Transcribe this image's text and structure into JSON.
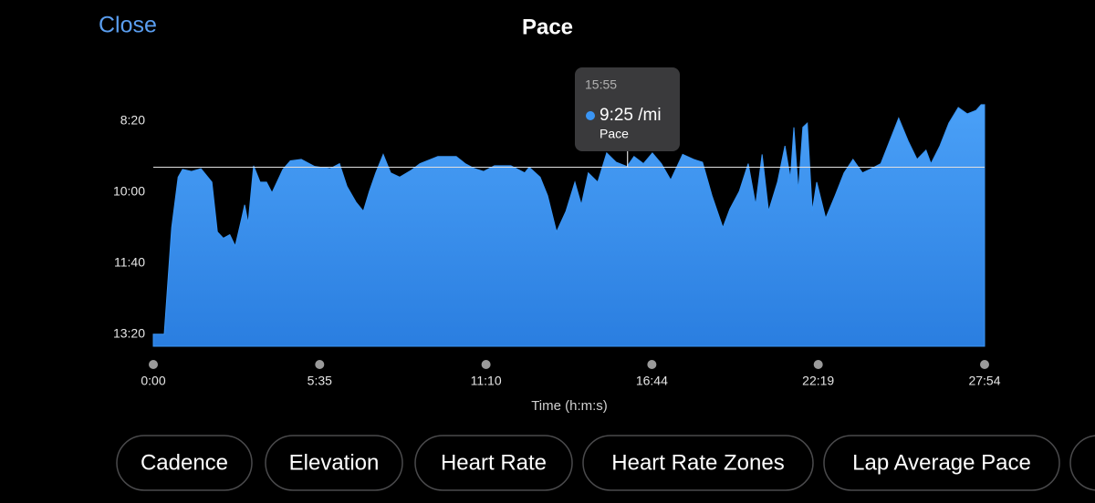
{
  "header": {
    "close": "Close",
    "title": "Pace"
  },
  "chart_data": {
    "type": "area",
    "x_label": "Time (h:m:s)",
    "xlim": [
      0,
      1674
    ],
    "xticks": [
      {
        "value": 0,
        "label": "0:00"
      },
      {
        "value": 335,
        "label": "5:35"
      },
      {
        "value": 670,
        "label": "11:10"
      },
      {
        "value": 1004,
        "label": "16:44"
      },
      {
        "value": 1339,
        "label": "22:19"
      },
      {
        "value": 1674,
        "label": "27:54"
      }
    ],
    "ylim": [
      817,
      458
    ],
    "yticks": [
      {
        "value": 500,
        "label": "8:20"
      },
      {
        "value": 600,
        "label": "10:00"
      },
      {
        "value": 700,
        "label": "11:40"
      },
      {
        "value": 800,
        "label": "13:20"
      }
    ],
    "x": [
      0,
      22,
      28,
      37,
      50,
      59,
      77,
      96,
      118,
      129,
      141,
      154,
      165,
      178,
      184,
      191,
      202,
      215,
      228,
      239,
      261,
      276,
      298,
      325,
      356,
      375,
      390,
      408,
      423,
      435,
      448,
      463,
      478,
      496,
      518,
      537,
      573,
      610,
      628,
      647,
      665,
      687,
      720,
      748,
      757,
      779,
      794,
      812,
      831,
      849,
      862,
      876,
      895,
      913,
      932,
      954,
      968,
      987,
      1005,
      1023,
      1042,
      1066,
      1088,
      1106,
      1125,
      1147,
      1161,
      1180,
      1198,
      1213,
      1226,
      1239,
      1257,
      1272,
      1283,
      1290,
      1299,
      1308,
      1317,
      1327,
      1336,
      1354,
      1373,
      1391,
      1409,
      1428,
      1446,
      1465,
      1483,
      1501,
      1520,
      1538,
      1556,
      1566,
      1584,
      1602,
      1621,
      1639,
      1657,
      1667,
      1674
    ],
    "series": [
      {
        "name": "Pace",
        "color": "#3a95f4",
        "values": [
          800,
          800,
          740,
          650,
          579,
          568,
          571,
          567,
          586,
          656,
          665,
          660,
          676,
          637,
          618,
          644,
          563,
          586,
          586,
          601,
          568,
          556,
          554,
          564,
          567,
          560,
          592,
          614,
          627,
          599,
          573,
          547,
          573,
          579,
          570,
          560,
          550,
          550,
          560,
          567,
          571,
          563,
          563,
          573,
          565,
          579,
          605,
          656,
          627,
          586,
          618,
          573,
          586,
          545,
          558,
          564,
          550,
          560,
          545,
          560,
          583,
          547,
          554,
          558,
          605,
          650,
          624,
          599,
          560,
          618,
          547,
          627,
          586,
          535,
          581,
          509,
          599,
          509,
          503,
          627,
          586,
          637,
          605,
          573,
          554,
          573,
          567,
          560,
          528,
          496,
          528,
          554,
          541,
          560,
          535,
          503,
          481,
          490,
          485,
          477,
          477
        ]
      }
    ],
    "tooltip": {
      "x": 955,
      "x_label": "15:55",
      "value": 565,
      "value_label": "9:25 /mi"
    }
  },
  "buttons": [
    "Cadence",
    "Elevation",
    "Heart Rate",
    "Heart Rate Zones",
    "Lap Average Pace"
  ]
}
